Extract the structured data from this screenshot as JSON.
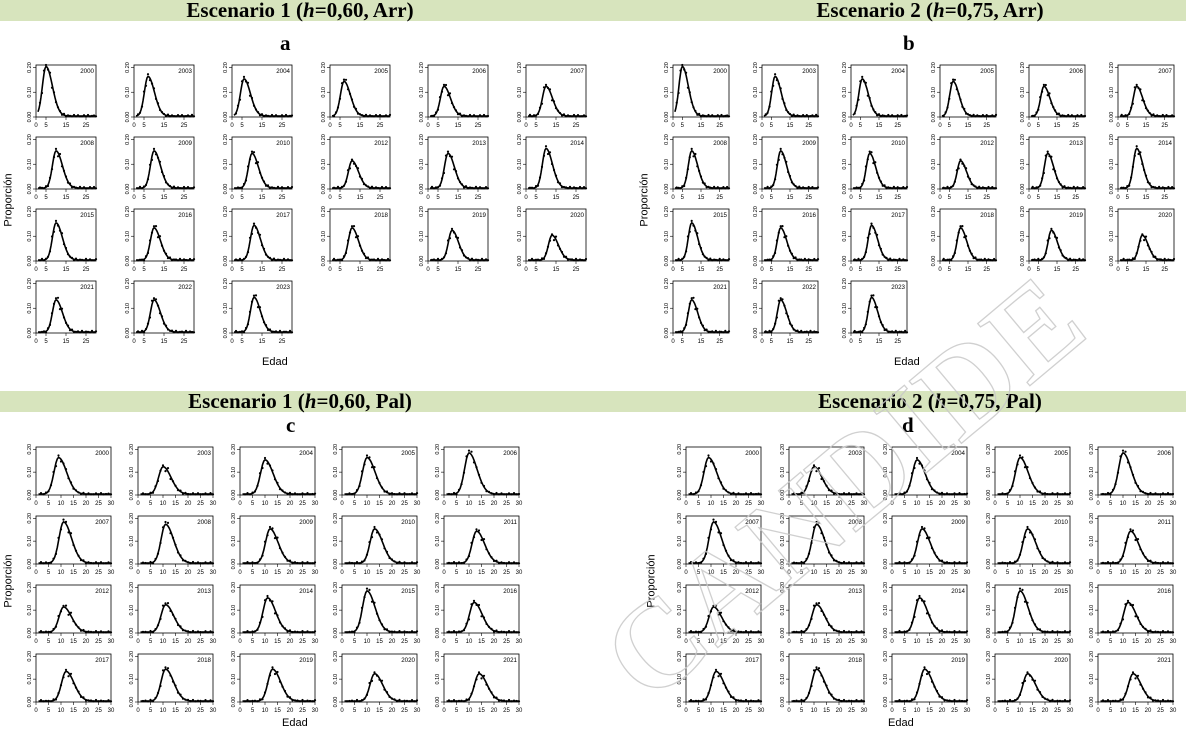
{
  "scenarios": [
    {
      "pre": "Escenario 1 (",
      "h": "h",
      "post": "=0,60, Arr)"
    },
    {
      "pre": "Escenario 2 (",
      "h": "h",
      "post": "=0,75, Arr)"
    },
    {
      "pre": "Escenario 1 (",
      "h": "h",
      "post": "=0,60, Pal)"
    },
    {
      "pre": "Escenario 2 (",
      "h": "h",
      "post": "=0,75, Pal)"
    }
  ],
  "panel_labels": [
    "a",
    "b",
    "c",
    "d"
  ],
  "watermark": "CANDIDE",
  "axes": {
    "xlabel": "Edad",
    "ylabel": "Proporción"
  },
  "chart_data": [
    {
      "panel": "a",
      "type": "line",
      "xlabel": "Edad",
      "ylabel": "Proporción",
      "xlim": [
        0,
        30
      ],
      "ylim": [
        0,
        0.21
      ],
      "xticks": [
        "0",
        "5",
        "15",
        "25"
      ],
      "yticks": [
        "0.00",
        "0.10",
        "0.20"
      ],
      "years": [
        "2000",
        "2003",
        "2004",
        "2005",
        "2006",
        "2007",
        "2008",
        "2009",
        "2010",
        "2012",
        "2013",
        "2014",
        "2015",
        "2016",
        "2017",
        "2018",
        "2019",
        "2020",
        "2021",
        "2022",
        "2023"
      ],
      "modal_age": [
        5,
        7,
        6,
        7,
        8,
        10,
        10,
        10,
        10,
        11,
        10,
        10,
        10,
        10,
        11,
        11,
        12,
        13,
        10,
        10,
        11
      ],
      "peak": [
        0.2,
        0.16,
        0.15,
        0.14,
        0.12,
        0.12,
        0.15,
        0.15,
        0.14,
        0.11,
        0.14,
        0.16,
        0.15,
        0.13,
        0.14,
        0.13,
        0.12,
        0.1,
        0.13,
        0.13,
        0.14
      ],
      "series": [
        {
          "name": "",
          "style": "line"
        },
        {
          "name": "",
          "style": "points"
        }
      ]
    },
    {
      "panel": "b",
      "type": "line",
      "xlabel": "Edad",
      "ylabel": "Proporción",
      "xlim": [
        0,
        30
      ],
      "ylim": [
        0,
        0.21
      ],
      "xticks": [
        "0",
        "5",
        "15",
        "25"
      ],
      "yticks": [
        "0.00",
        "0.10",
        "0.20"
      ],
      "years": [
        "2000",
        "2003",
        "2004",
        "2005",
        "2006",
        "2007",
        "2008",
        "2009",
        "2010",
        "2012",
        "2013",
        "2014",
        "2015",
        "2016",
        "2017",
        "2018",
        "2019",
        "2020",
        "2021",
        "2022",
        "2023"
      ],
      "modal_age": [
        5,
        7,
        6,
        7,
        8,
        10,
        10,
        10,
        10,
        11,
        10,
        10,
        10,
        10,
        11,
        11,
        12,
        13,
        10,
        10,
        11
      ],
      "peak": [
        0.2,
        0.16,
        0.15,
        0.14,
        0.12,
        0.12,
        0.15,
        0.15,
        0.14,
        0.11,
        0.14,
        0.16,
        0.15,
        0.13,
        0.14,
        0.13,
        0.12,
        0.1,
        0.13,
        0.13,
        0.14
      ],
      "series": [
        {
          "name": "",
          "style": "line"
        },
        {
          "name": "",
          "style": "points"
        }
      ]
    },
    {
      "panel": "c",
      "type": "line",
      "xlabel": "Edad",
      "ylabel": "Proporción",
      "xlim": [
        0,
        30
      ],
      "ylim": [
        0,
        0.21
      ],
      "xticks": [
        "0",
        "5",
        "10",
        "15",
        "20",
        "25",
        "30"
      ],
      "yticks": [
        "0.00",
        "0.10",
        "0.20"
      ],
      "years": [
        "2000",
        "2003",
        "2004",
        "2005",
        "2006",
        "2007",
        "2008",
        "2009",
        "2010",
        "2011",
        "2012",
        "2013",
        "2014",
        "2015",
        "2016",
        "2017",
        "2018",
        "2019",
        "2020",
        "2021"
      ],
      "modal_age": [
        9,
        10,
        10,
        10,
        10,
        11,
        11,
        12,
        13,
        13,
        11,
        11,
        11,
        10,
        12,
        12,
        11,
        13,
        13,
        14
      ],
      "peak": [
        0.16,
        0.12,
        0.15,
        0.16,
        0.18,
        0.18,
        0.17,
        0.15,
        0.15,
        0.14,
        0.11,
        0.12,
        0.15,
        0.18,
        0.13,
        0.13,
        0.14,
        0.14,
        0.12,
        0.12
      ],
      "series": [
        {
          "name": "",
          "style": "line"
        },
        {
          "name": "",
          "style": "points"
        }
      ]
    },
    {
      "panel": "d",
      "type": "line",
      "xlabel": "Edad",
      "ylabel": "Proporción",
      "xlim": [
        0,
        30
      ],
      "ylim": [
        0,
        0.21
      ],
      "xticks": [
        "0",
        "5",
        "10",
        "15",
        "20",
        "25",
        "30"
      ],
      "yticks": [
        "0.00",
        "0.10",
        "0.20"
      ],
      "years": [
        "2000",
        "2003",
        "2004",
        "2005",
        "2006",
        "2007",
        "2008",
        "2009",
        "2010",
        "2011",
        "2012",
        "2013",
        "2014",
        "2015",
        "2016",
        "2017",
        "2018",
        "2019",
        "2020",
        "2021"
      ],
      "modal_age": [
        9,
        10,
        10,
        10,
        10,
        11,
        11,
        12,
        13,
        13,
        11,
        11,
        11,
        10,
        12,
        12,
        11,
        13,
        13,
        14
      ],
      "peak": [
        0.16,
        0.12,
        0.15,
        0.16,
        0.18,
        0.18,
        0.17,
        0.15,
        0.15,
        0.14,
        0.11,
        0.12,
        0.15,
        0.18,
        0.13,
        0.13,
        0.14,
        0.14,
        0.12,
        0.12
      ],
      "series": [
        {
          "name": "",
          "style": "line"
        },
        {
          "name": "",
          "style": "points"
        }
      ]
    }
  ]
}
